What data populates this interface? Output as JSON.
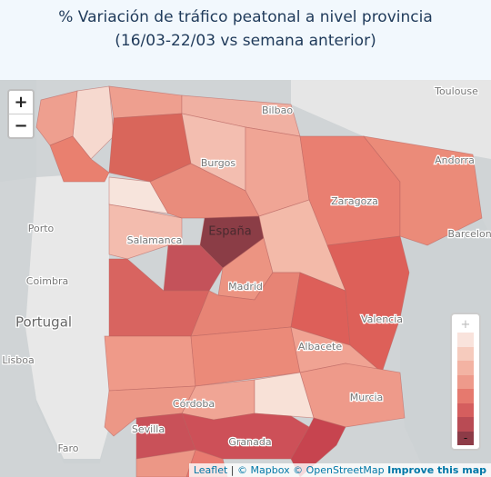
{
  "title": "% Variación de tráfico peatonal a nivel provincia (16/03-22/03 vs semana anterior)",
  "zoom": {
    "in": "+",
    "out": "−"
  },
  "labels": [
    "Toulouse",
    "Bilbao",
    "Andorra",
    "Burgos",
    "Porto",
    "España",
    "Zaragoza",
    "Salamanca",
    "Barcelona",
    "Madrid",
    "Coimbra",
    "Valencia",
    "Portugal",
    "Lisboa",
    "Albacete",
    "Córdoba",
    "Murcia",
    "Sevilla",
    "Faro",
    "Granada"
  ],
  "legend": {
    "top": "+",
    "bottom": "-",
    "colors": [
      "#f9e3dc",
      "#f6cbbd",
      "#f3b3a3",
      "#ee9a8b",
      "#e6796e",
      "#d55e5e",
      "#b94b54",
      "#8d3b47"
    ]
  },
  "attribution": {
    "leaflet": "Leaflet",
    "separator": "|",
    "mapbox": "© Mapbox",
    "osm": "© OpenStreetMap",
    "improve": "Improve this map"
  }
}
